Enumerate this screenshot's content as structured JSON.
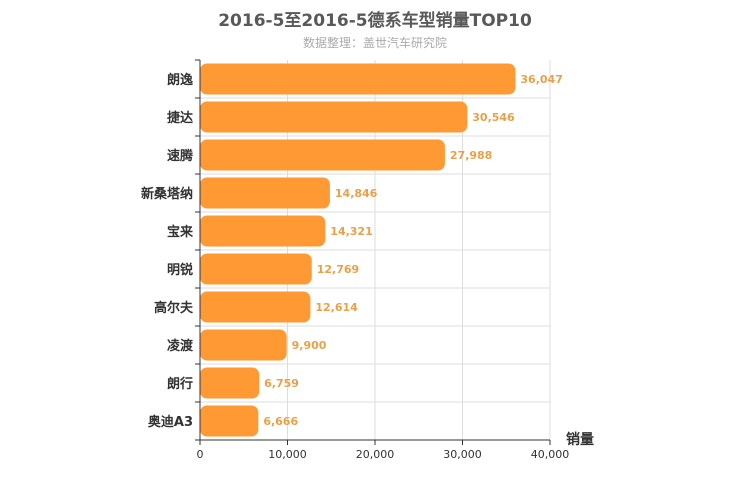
{
  "chart_data": {
    "type": "bar",
    "orientation": "horizontal",
    "title": "2016-5至2016-5德系车型销量TOP10",
    "subtitle": "数据整理：盖世汽车研究院",
    "xlabel": "销量",
    "ylabel": "",
    "categories": [
      "朗逸",
      "捷达",
      "速腾",
      "新桑塔纳",
      "宝来",
      "明锐",
      "高尔夫",
      "凌渡",
      "朗行",
      "奥迪A3"
    ],
    "values": [
      36047,
      30546,
      27988,
      14846,
      14321,
      12769,
      12614,
      9900,
      6759,
      6666
    ],
    "value_labels": [
      "36,047",
      "30,546",
      "27,988",
      "14,846",
      "14,321",
      "12,769",
      "12,614",
      "9,900",
      "6,759",
      "6,666"
    ],
    "xlim": [
      0,
      40000
    ],
    "xticks": [
      0,
      10000,
      20000,
      30000,
      40000
    ],
    "xtick_labels": [
      "0",
      "10,000",
      "20,000",
      "30,000",
      "40,000"
    ],
    "grid": true,
    "legend": "none",
    "colors": {
      "bar": "#ff9933",
      "label": "#e8a14a",
      "axis": "#333333",
      "grid": "#dddddd",
      "title": "#595959",
      "subtitle": "#aaaaaa"
    }
  }
}
